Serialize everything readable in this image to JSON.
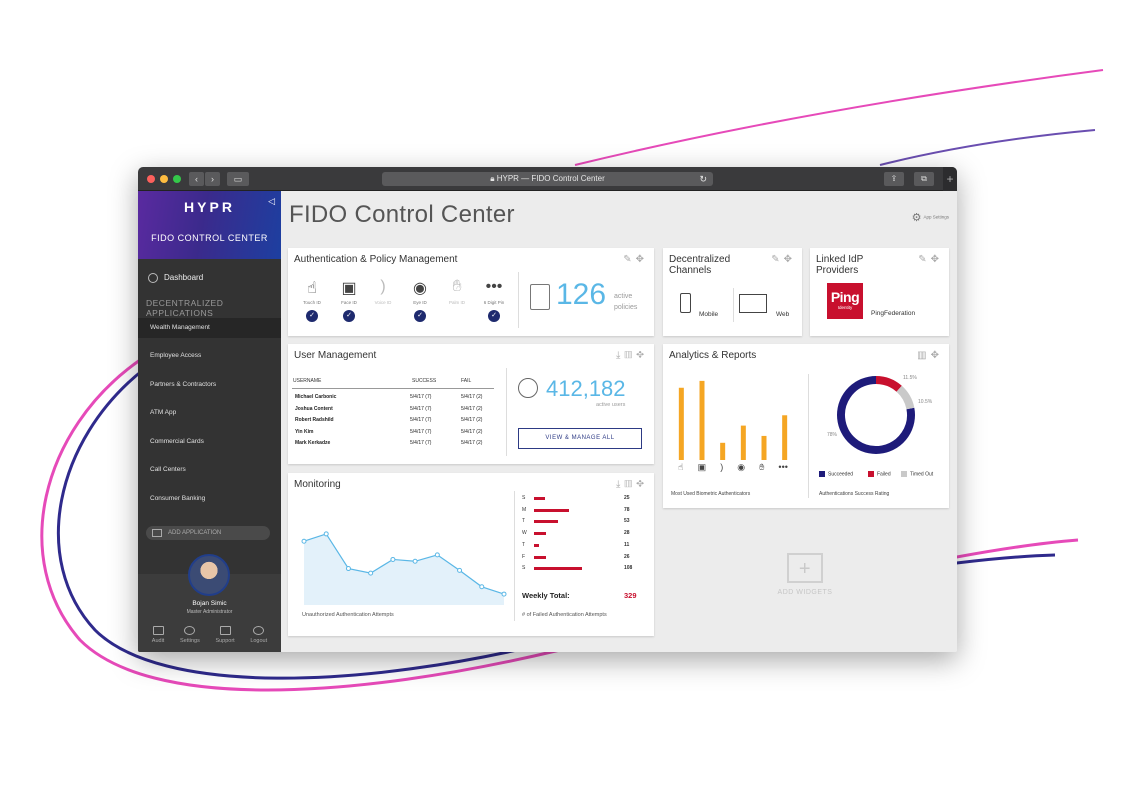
{
  "browser": {
    "url_title": "HYPR — FIDO Control Center"
  },
  "sidebar": {
    "logo": "HYPR",
    "title": "FIDO CONTROL CENTER",
    "dashboard": "Dashboard",
    "section": "DECENTRALIZED APPLICATIONS",
    "items": [
      {
        "label": "Wealth Management"
      },
      {
        "label": "Employee Access"
      },
      {
        "label": "Partners & Contractors"
      },
      {
        "label": "ATM App"
      },
      {
        "label": "Commercial Cards"
      },
      {
        "label": "Call Centers"
      },
      {
        "label": "Consumer Banking"
      }
    ],
    "add_app": "ADD APPLICATION",
    "user": {
      "name": "Bojan Simic",
      "role": "Master Administrator"
    },
    "footer": {
      "audit": "Audit",
      "settings": "Settings",
      "support": "Support",
      "logout": "Logout"
    }
  },
  "main": {
    "title": "FIDO Control Center",
    "app_settings": "App Settings"
  },
  "auth": {
    "title": "Authentication & Policy Management",
    "methods": [
      {
        "label": "Touch ID",
        "icon": "fingerprint-icon",
        "enabled": true
      },
      {
        "label": "Face ID",
        "icon": "face-icon",
        "enabled": true
      },
      {
        "label": "Voice ID",
        "icon": "voice-icon",
        "enabled": false
      },
      {
        "label": "Eye ID",
        "icon": "eye-icon",
        "enabled": true
      },
      {
        "label": "Palm ID",
        "icon": "palm-icon",
        "enabled": false
      },
      {
        "label": "6 Digit Pin",
        "icon": "pin-icon",
        "enabled": true
      }
    ],
    "policies_count": "126",
    "policies_label_1": "active",
    "policies_label_2": "policies"
  },
  "channels": {
    "title": "Decentralized Channels",
    "mobile": "Mobile",
    "web": "Web"
  },
  "idp": {
    "title": "Linked IdP Providers",
    "logo_text": "Ping",
    "logo_sub": "Identity",
    "provider": "PingFederation"
  },
  "users": {
    "title": "User Management",
    "columns": {
      "username": "USERNAME",
      "success": "SUCCESS",
      "fail": "FAIL"
    },
    "rows": [
      {
        "name": "Michael Carbonic",
        "success": "5/4/17 (7)",
        "fail": "5/4/17 (2)"
      },
      {
        "name": "Joshua Content",
        "success": "5/4/17 (7)",
        "fail": "5/4/17 (2)"
      },
      {
        "name": "Robert Radshild",
        "success": "5/4/17 (7)",
        "fail": "5/4/17 (2)"
      },
      {
        "name": "Yin Kim",
        "success": "5/4/17 (7)",
        "fail": "5/4/17 (2)"
      },
      {
        "name": "Mark Kerkadze",
        "success": "5/4/17 (7)",
        "fail": "5/4/17 (2)"
      }
    ],
    "active_count": "412,182",
    "active_label": "active users",
    "view_button": "VIEW & MANAGE ALL"
  },
  "monitoring": {
    "title": "Monitoring",
    "chart_caption": "Unauthorized Authentication Attempts",
    "days": [
      {
        "day": "S",
        "value": 25
      },
      {
        "day": "M",
        "value": 78
      },
      {
        "day": "T",
        "value": 53
      },
      {
        "day": "W",
        "value": 28
      },
      {
        "day": "T",
        "value": 11
      },
      {
        "day": "F",
        "value": 26
      },
      {
        "day": "S",
        "value": 108
      }
    ],
    "weekly_label": "Weekly Total:",
    "weekly_total": "329",
    "failed_caption": "# of Failed Authentication Attempts",
    "accent": "#c8102e",
    "line_color": "#5ab7e6"
  },
  "analytics": {
    "title": "Analytics & Reports",
    "bar_caption": "Most Used Biometric Authenticators",
    "donut_caption": "Authentications Success Rating",
    "legend": {
      "succeeded": "Succeeded",
      "failed": "Failed",
      "timed_out": "Timed Out"
    },
    "pct_succeeded": "78%",
    "pct_failed": "11.5%",
    "pct_timed_out": "10.5%",
    "bar_color": "#f5a623",
    "colors": {
      "succeeded": "#1e1b7a",
      "failed": "#c8102e",
      "timed_out": "#c9c9c9"
    }
  },
  "add_widgets": "ADD WIDGETS",
  "chart_data": [
    {
      "type": "line",
      "title": "Unauthorized Authentication Attempts",
      "x": [
        1,
        2,
        3,
        4,
        5,
        6,
        7,
        8,
        9,
        10
      ],
      "values": [
        70,
        78,
        40,
        35,
        50,
        48,
        55,
        38,
        20,
        12
      ]
    },
    {
      "type": "bar",
      "title": "# of Failed Authentication Attempts",
      "categories": [
        "S",
        "M",
        "T",
        "W",
        "T",
        "F",
        "S"
      ],
      "values": [
        25,
        78,
        53,
        28,
        11,
        26,
        108
      ]
    },
    {
      "type": "bar",
      "title": "Most Used Biometric Authenticators",
      "categories": [
        "Touch ID",
        "Face ID",
        "Voice ID",
        "Eye ID",
        "Palm ID",
        "6 Digit Pin"
      ],
      "values": [
        84,
        92,
        20,
        40,
        28,
        52
      ]
    },
    {
      "type": "pie",
      "title": "Authentications Success Rating",
      "categories": [
        "Succeeded",
        "Failed",
        "Timed Out"
      ],
      "values": [
        78,
        11.5,
        10.5
      ]
    }
  ]
}
